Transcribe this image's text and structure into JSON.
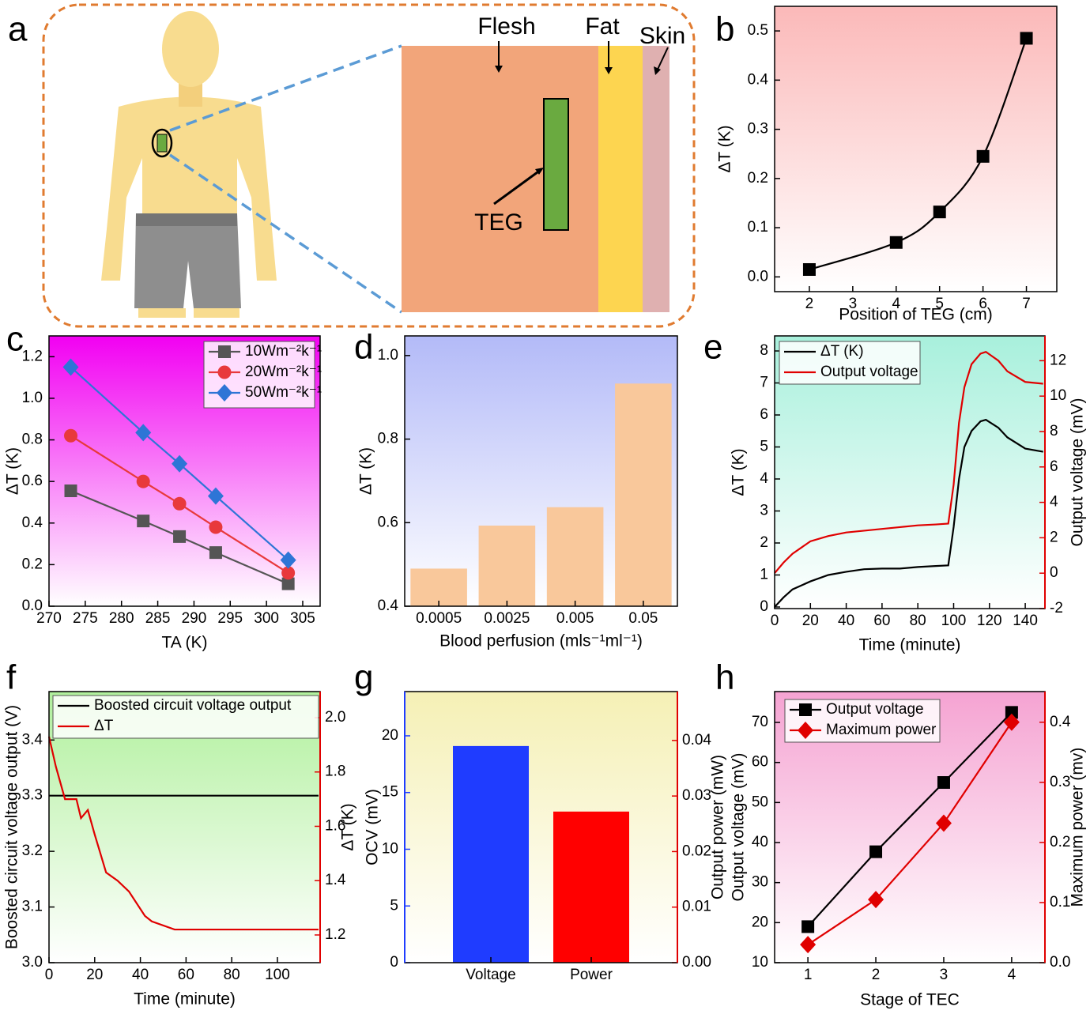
{
  "diagram": {
    "panel_label": "a",
    "labels": [
      "Flesh",
      "Fat",
      "Skin",
      "TEG"
    ]
  },
  "chart_data": [
    {
      "type": "line",
      "panel_label": "b",
      "xlabel": "Position of TEG (cm)",
      "ylabel": "ΔT (K)",
      "xlim": [
        1.2,
        7.7
      ],
      "ylim": [
        -0.03,
        0.55
      ],
      "xticks": [
        2,
        3,
        4,
        5,
        6,
        7
      ],
      "yticks": [
        {
          "value": 0,
          "label": "0.0"
        },
        0.1,
        0.2,
        0.3,
        0.4,
        0.5
      ],
      "background": [
        "#fbb9b9",
        "#ffffff"
      ],
      "x": [
        2,
        4,
        5,
        6,
        7
      ],
      "series": [
        {
          "color": "#000000",
          "marker": "square",
          "smooth": true,
          "values": [
            0.015,
            0.07,
            0.132,
            0.245,
            0.485
          ]
        }
      ]
    },
    {
      "type": "line",
      "panel_label": "c",
      "xlabel": "TA (K)",
      "ylabel": "ΔT (K)",
      "xlim": [
        270,
        307.4
      ],
      "ylim": [
        0,
        1.3
      ],
      "xticks": [
        270,
        275,
        280,
        285,
        290,
        295,
        300,
        305
      ],
      "yticks": [
        {
          "value": 0,
          "label": "0.0"
        },
        0.2,
        0.4,
        0.6,
        0.8,
        {
          "value": 1,
          "label": "1.0"
        },
        1.2
      ],
      "background": [
        "#f200f2",
        "#ffffff"
      ],
      "legend": "upper right",
      "x": [
        273,
        283,
        288,
        293,
        303
      ],
      "series": [
        {
          "name": "10Wm⁻²k⁻¹",
          "color": "#555555",
          "marker": "square",
          "values": [
            0.555,
            0.41,
            0.335,
            0.258,
            0.108
          ]
        },
        {
          "name": "20Wm⁻²k⁻¹",
          "color": "#e8393c",
          "marker": "circle",
          "values": [
            0.82,
            0.6,
            0.493,
            0.38,
            0.16
          ]
        },
        {
          "name": "50Wm⁻²k⁻¹",
          "color": "#2e75d6",
          "marker": "diamond",
          "values": [
            1.15,
            0.835,
            0.685,
            0.53,
            0.222
          ]
        }
      ]
    },
    {
      "type": "bar",
      "panel_label": "d",
      "xlabel": "Blood perfusion (mls⁻¹ml⁻¹)",
      "ylabel": "ΔT (K)",
      "ylim": [
        0.4,
        1.047
      ],
      "yticks": [
        0.4,
        0.6,
        0.8,
        {
          "value": 1,
          "label": "1.0"
        }
      ],
      "background": [
        "#b3baf8",
        "#ffffff"
      ],
      "categories": [
        "0.0005",
        "0.0025",
        "0.005",
        "0.05"
      ],
      "values": [
        0.49,
        0.593,
        0.637,
        0.933
      ],
      "color": "#f9c89b"
    },
    {
      "type": "line",
      "panel_label": "e",
      "xlabel": "Time (minute)",
      "ylabel": "ΔT (K)",
      "y2label": "Output voltage (mV)",
      "xlim": [
        0,
        151
      ],
      "ylim": [
        -0.05,
        8.47
      ],
      "y2lim": [
        -2,
        13.4
      ],
      "xticks": [
        0,
        20,
        40,
        60,
        80,
        100,
        120,
        140
      ],
      "yticks": [
        0,
        1,
        2,
        3,
        4,
        5,
        6,
        7,
        8
      ],
      "y2ticks": [
        -2,
        0,
        2,
        4,
        6,
        8,
        10,
        12
      ],
      "y2color": "#e00000",
      "background": [
        "#a8f0dc",
        "#ffffff"
      ],
      "legend": "upper left",
      "x": [
        0,
        5,
        10,
        20,
        30,
        40,
        50,
        60,
        70,
        80,
        90,
        97,
        100,
        103,
        106,
        110,
        115,
        118,
        125,
        130,
        140,
        150
      ],
      "series": [
        {
          "name": "ΔT (K)",
          "color": "#000000",
          "values": [
            0,
            0.3,
            0.55,
            0.8,
            1.0,
            1.1,
            1.18,
            1.2,
            1.2,
            1.25,
            1.28,
            1.3,
            2.5,
            4.0,
            5.0,
            5.5,
            5.8,
            5.85,
            5.6,
            5.3,
            4.95,
            4.85
          ]
        },
        {
          "name": "Output voltage",
          "color": "#e00000",
          "axis": "y2",
          "values": [
            0,
            0.6,
            1.1,
            1.8,
            2.1,
            2.3,
            2.4,
            2.5,
            2.6,
            2.7,
            2.75,
            2.8,
            5,
            8.5,
            10.5,
            11.8,
            12.4,
            12.5,
            12.0,
            11.4,
            10.8,
            10.7
          ]
        }
      ]
    },
    {
      "type": "line",
      "panel_label": "f",
      "xlabel": "Time (minute)",
      "ylabel": "Boosted circuit voltage output (V)",
      "y2label": "ΔT (K)",
      "xlim": [
        0,
        118.7
      ],
      "ylim": [
        3.0,
        3.487
      ],
      "y2lim": [
        1.098,
        2.096
      ],
      "xticks": [
        0,
        20,
        40,
        60,
        80,
        100
      ],
      "yticks": [
        {
          "value": 3,
          "label": "3.0"
        },
        3.1,
        3.2,
        3.3,
        3.4
      ],
      "y2ticks": [
        1.2,
        1.4,
        1.6,
        1.8,
        {
          "value": 2,
          "label": "2.0"
        }
      ],
      "y2color": "#e00000",
      "background": [
        "#b0f09c",
        "#ffffff"
      ],
      "legend": "upper left",
      "x": [
        0,
        3,
        7,
        12,
        14,
        17,
        20,
        25,
        30,
        35,
        42,
        45,
        55,
        118
      ],
      "series": [
        {
          "name": "Boosted circuit voltage output",
          "color": "#000000",
          "values": [
            3.3,
            3.3,
            3.3,
            3.3,
            3.3,
            3.3,
            3.3,
            3.3,
            3.3,
            3.3,
            3.3,
            3.3,
            3.3,
            3.3
          ]
        },
        {
          "name": "ΔT",
          "color": "#e00000",
          "axis": "y2",
          "values": [
            1.93,
            1.82,
            1.7,
            1.7,
            1.63,
            1.66,
            1.57,
            1.43,
            1.4,
            1.36,
            1.27,
            1.25,
            1.22,
            1.22
          ]
        }
      ]
    },
    {
      "type": "bar",
      "panel_label": "g",
      "ylabel": "OCV (mV)",
      "y2label": "Output power (mW)",
      "ylim": [
        0,
        23.9
      ],
      "y2lim": [
        0,
        0.0488
      ],
      "yticks": [
        0,
        5,
        10,
        15,
        20
      ],
      "y2ticks": [
        {
          "value": 0,
          "label": "0.00"
        },
        0.01,
        0.02,
        0.03,
        0.04
      ],
      "ycolor": "#1f3cff",
      "y2color": "#e00000",
      "background": [
        "#f5f0b5",
        "#ffffff"
      ],
      "categories": [
        "Voltage",
        "Power"
      ],
      "values": [
        19.1,
        0.0272
      ],
      "colors": [
        "#1f3cff",
        "#ff0000"
      ],
      "value_axes": [
        "y",
        "y2"
      ]
    },
    {
      "type": "line",
      "panel_label": "h",
      "xlabel": "Stage of TEC",
      "ylabel": "Output voltage (mV)",
      "y2label": "Maximum power (mv)",
      "xlim": [
        0.51,
        4.49
      ],
      "ylim": [
        10,
        77.7
      ],
      "y2lim": [
        0,
        0.451
      ],
      "xticks": [
        1,
        2,
        3,
        4
      ],
      "yticks": [
        10,
        20,
        30,
        40,
        50,
        60,
        70
      ],
      "y2ticks": [
        {
          "value": 0,
          "label": "0.0"
        },
        0.1,
        0.2,
        0.3,
        0.4
      ],
      "y2color": "#e00000",
      "background": [
        "#f5a3d2",
        "#ffffff"
      ],
      "legend": "upper left",
      "x": [
        1,
        2,
        3,
        4
      ],
      "series": [
        {
          "name": "Output voltage",
          "color": "#000000",
          "marker": "square",
          "values": [
            19,
            37.7,
            55,
            72.5
          ]
        },
        {
          "name": "Maximum power",
          "color": "#e00000",
          "marker": "diamond",
          "axis": "y2",
          "values": [
            0.03,
            0.105,
            0.232,
            0.4
          ]
        }
      ]
    }
  ]
}
